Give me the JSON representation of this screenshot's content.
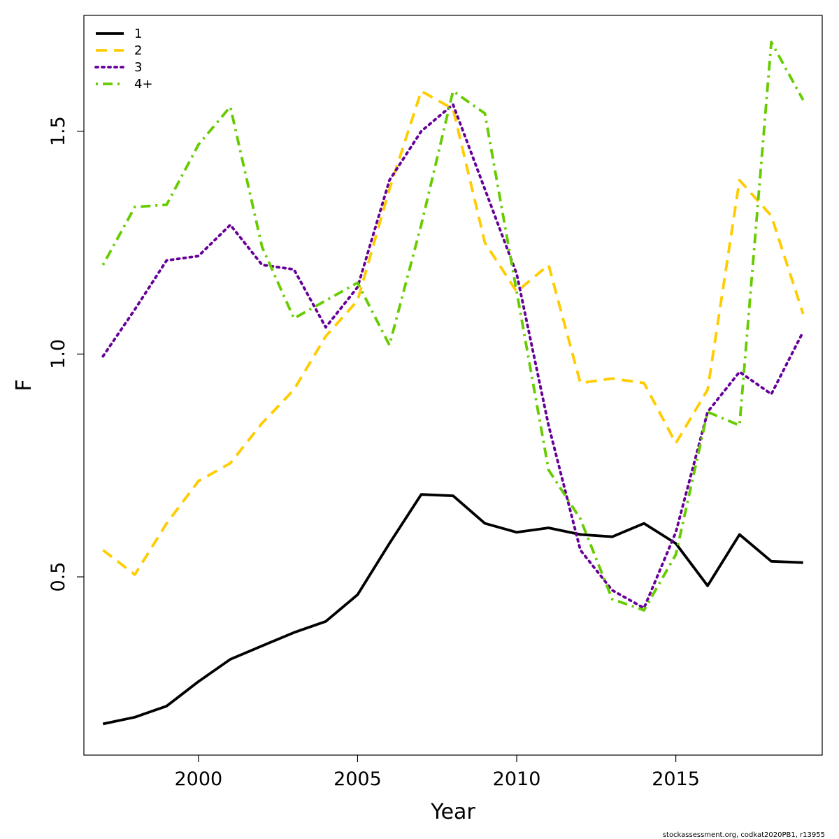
{
  "chart_data": {
    "type": "line",
    "xlabel": "Year",
    "ylabel": "F",
    "xlim": [
      1996.4,
      2019.6
    ],
    "ylim": [
      0.1,
      1.76
    ],
    "xticks": [
      2000,
      2005,
      2010,
      2015
    ],
    "xtick_labels": [
      "2000",
      "2005",
      "2010",
      "2015"
    ],
    "yticks": [
      0.5,
      1.0,
      1.5
    ],
    "ytick_labels": [
      "0.5",
      "1.0",
      "1.5"
    ],
    "grid": false,
    "legend_position": "top-left",
    "x": [
      1997,
      1998,
      1999,
      2000,
      2001,
      2002,
      2003,
      2004,
      2005,
      2006,
      2007,
      2008,
      2009,
      2010,
      2011,
      2012,
      2013,
      2014,
      2015,
      2016,
      2017,
      2018,
      2019
    ],
    "series": [
      {
        "name": "1",
        "color": "#000000",
        "dash": "solid",
        "values": [
          0.17,
          0.185,
          0.21,
          0.265,
          0.315,
          0.345,
          0.375,
          0.4,
          0.46,
          0.575,
          0.685,
          0.682,
          0.62,
          0.6,
          0.61,
          0.595,
          0.59,
          0.62,
          0.575,
          0.48,
          0.595,
          0.535,
          0.532
        ]
      },
      {
        "name": "2",
        "color": "#ffcc00",
        "dash": "dashed",
        "values": [
          0.56,
          0.505,
          0.62,
          0.715,
          0.755,
          0.845,
          0.92,
          1.04,
          1.12,
          1.37,
          1.59,
          1.55,
          1.25,
          1.14,
          1.2,
          0.935,
          0.945,
          0.935,
          0.8,
          0.92,
          1.39,
          1.31,
          1.09
        ]
      },
      {
        "name": "3",
        "color": "#660099",
        "dash": "dotted",
        "values": [
          0.995,
          1.1,
          1.21,
          1.22,
          1.29,
          1.2,
          1.19,
          1.06,
          1.15,
          1.39,
          1.5,
          1.56,
          1.37,
          1.18,
          0.84,
          0.56,
          0.47,
          0.43,
          0.6,
          0.87,
          0.96,
          0.91,
          1.05
        ]
      },
      {
        "name": "4+",
        "color": "#66cc00",
        "dash": "dashdot",
        "values": [
          1.2,
          1.33,
          1.335,
          1.47,
          1.555,
          1.24,
          1.08,
          1.12,
          1.16,
          1.02,
          1.29,
          1.59,
          1.54,
          1.14,
          0.74,
          0.63,
          0.45,
          0.425,
          0.55,
          0.87,
          0.84,
          1.7,
          1.57
        ]
      }
    ]
  },
  "footer_text": "stockassessment.org, codkat2020PB1, r13955"
}
